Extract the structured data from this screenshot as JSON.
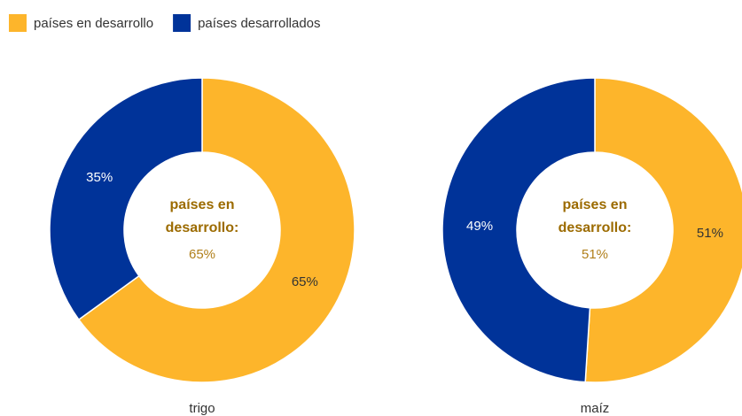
{
  "legend": {
    "items": [
      {
        "name": "países en desarrollo",
        "color": "#fdb52b"
      },
      {
        "name": "países desarrollados",
        "color": "#003399"
      }
    ]
  },
  "chart_data": [
    {
      "type": "pie",
      "donut": true,
      "label": "trigo",
      "values": [
        65,
        35
      ],
      "value_labels": [
        "65%",
        "35%"
      ],
      "center_title": "países en desarrollo:"
    },
    {
      "type": "pie",
      "donut": true,
      "label": "maíz",
      "values": [
        51,
        49
      ],
      "value_labels": [
        "51%",
        "49%"
      ],
      "center_title": "países en desarrollo:"
    }
  ]
}
